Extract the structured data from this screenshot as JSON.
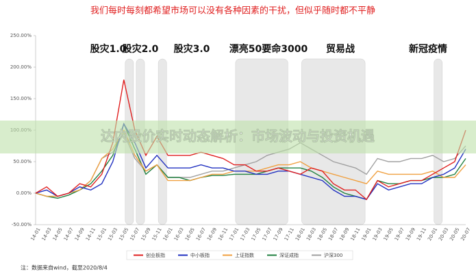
{
  "chart_data": {
    "type": "line",
    "title": "我们每时每刻都希望市场可以没有各种因素的干扰，但似乎随时都不平静",
    "banner": "达内股价实时动态解析：市场波动与投资机遇",
    "note": "注：数据来自wind，截至2020/8/4",
    "categories": [
      "14-01",
      "14-03",
      "14-05",
      "14-07",
      "14-09",
      "14-11",
      "15-01",
      "15-03",
      "15-05",
      "15-07",
      "15-09",
      "15-11",
      "16-01",
      "16-03",
      "16-05",
      "16-07",
      "16-09",
      "16-11",
      "17-01",
      "17-03",
      "17-05",
      "17-07",
      "17-09",
      "17-11",
      "18-01",
      "18-03",
      "18-05",
      "18-07",
      "18-09",
      "18-11",
      "19-01",
      "19-03",
      "19-05",
      "19-07",
      "19-09",
      "19-11",
      "20-01",
      "20-03",
      "20-05",
      "20-07"
    ],
    "ylim": [
      -50,
      250
    ],
    "yticks": [
      {
        "value": -50,
        "label": "-50.00%"
      },
      {
        "value": 0,
        "label": "0.00%"
      },
      {
        "value": 50,
        "label": "50.00%"
      },
      {
        "value": 100,
        "label": "100.00%"
      },
      {
        "value": 150,
        "label": "150.00%"
      },
      {
        "value": 200,
        "label": "200.00%"
      },
      {
        "value": 250,
        "label": "250.00%"
      }
    ],
    "annotations": [
      {
        "label": "股灾1.0",
        "from": "15-05",
        "to": "15-07"
      },
      {
        "label": "股灾2.0",
        "from": "15-07",
        "to": "15-09"
      },
      {
        "label": "股灾3.0",
        "from": "15-11",
        "to": "16-01"
      },
      {
        "label": "漂亮50要命3000",
        "from": "17-01",
        "to": "17-11"
      },
      {
        "label": "贸易战",
        "from": "18-01",
        "to": "19-01"
      },
      {
        "label": "新冠疫情",
        "from": "20-01",
        "to": "20-03"
      }
    ],
    "series": [
      {
        "name": "创业板指",
        "color": "#e02020",
        "values": [
          0,
          10,
          -5,
          0,
          15,
          10,
          30,
          80,
          180,
          100,
          60,
          90,
          60,
          60,
          60,
          65,
          60,
          55,
          45,
          45,
          35,
          35,
          40,
          35,
          30,
          40,
          35,
          15,
          5,
          5,
          -10,
          20,
          10,
          15,
          20,
          20,
          30,
          40,
          50,
          100
        ]
      },
      {
        "name": "中小板指",
        "color": "#2030c0",
        "values": [
          0,
          5,
          -5,
          0,
          10,
          5,
          15,
          50,
          110,
          80,
          40,
          60,
          40,
          40,
          40,
          45,
          40,
          40,
          35,
          35,
          30,
          30,
          35,
          35,
          30,
          25,
          20,
          5,
          -5,
          -5,
          -10,
          15,
          5,
          10,
          15,
          15,
          25,
          30,
          40,
          70
        ]
      },
      {
        "name": "上证指数",
        "color": "#f0a040",
        "values": [
          0,
          -5,
          -5,
          0,
          5,
          20,
          55,
          70,
          100,
          60,
          35,
          45,
          20,
          20,
          20,
          25,
          30,
          30,
          35,
          35,
          35,
          40,
          45,
          45,
          50,
          40,
          35,
          30,
          25,
          20,
          15,
          35,
          30,
          30,
          30,
          30,
          35,
          25,
          25,
          45
        ]
      },
      {
        "name": "深证成指",
        "color": "#208040",
        "values": [
          0,
          -5,
          -8,
          -3,
          5,
          15,
          35,
          60,
          110,
          70,
          30,
          45,
          25,
          25,
          20,
          25,
          28,
          28,
          30,
          30,
          30,
          35,
          40,
          40,
          40,
          35,
          25,
          10,
          0,
          -5,
          -10,
          20,
          15,
          15,
          20,
          20,
          25,
          25,
          30,
          55
        ]
      },
      {
        "name": "沪深300",
        "color": "#a0a0a0",
        "values": [
          0,
          -5,
          -5,
          0,
          5,
          20,
          55,
          65,
          95,
          55,
          35,
          45,
          25,
          25,
          25,
          30,
          35,
          35,
          40,
          45,
          50,
          60,
          65,
          70,
          80,
          70,
          60,
          50,
          45,
          40,
          30,
          55,
          50,
          50,
          55,
          55,
          60,
          50,
          55,
          75
        ]
      }
    ]
  }
}
